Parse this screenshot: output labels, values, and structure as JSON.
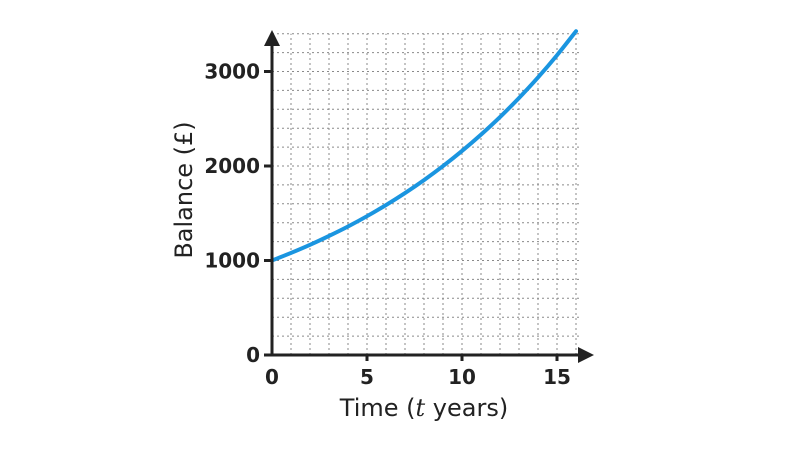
{
  "chart_data": {
    "type": "line",
    "title": "",
    "xlabel_prefix": "Time (",
    "xlabel_var": "t",
    "xlabel_suffix": " years)",
    "ylabel": "Balance (£)",
    "xlim": [
      0,
      16
    ],
    "ylim": [
      0,
      3400
    ],
    "xticks": [
      0,
      5,
      10,
      15
    ],
    "yticks": [
      0,
      1000,
      2000,
      3000
    ],
    "grid": true,
    "legend": "none",
    "series": [
      {
        "color": "#1a95e0",
        "x": [
          0,
          1,
          2,
          3,
          4,
          5,
          6,
          7,
          8,
          9,
          10,
          11,
          12,
          13,
          14,
          15,
          16
        ],
        "y": [
          1000,
          1080,
          1166,
          1260,
          1360,
          1469,
          1587,
          1714,
          1851,
          1999,
          2159,
          2332,
          2518,
          2720,
          2937,
          3172,
          3426
        ]
      }
    ]
  }
}
